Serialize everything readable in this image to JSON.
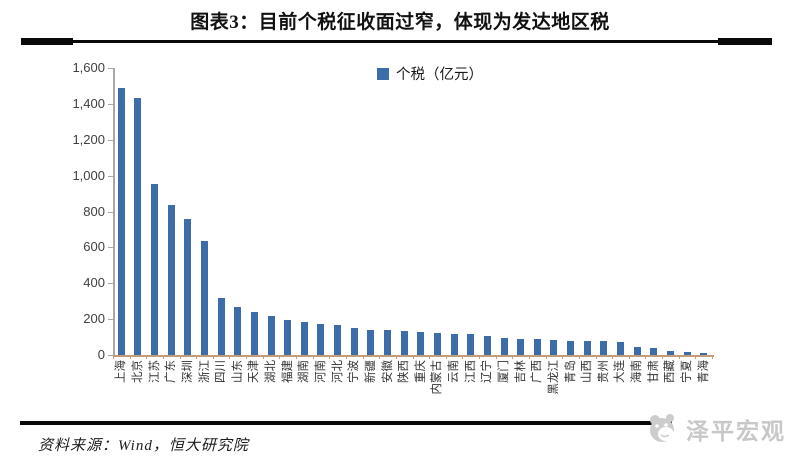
{
  "chart_data": {
    "type": "bar",
    "title": "图表3：目前个税征收面过窄，体现为发达地区税",
    "legend": [
      "个税（亿元）"
    ],
    "legend_position": "top-center",
    "grid": false,
    "bar_color": "#3C6DA9",
    "categories": [
      "上海",
      "北京",
      "江苏",
      "广东",
      "深圳",
      "浙江",
      "四川",
      "山东",
      "天津",
      "湖北",
      "福建",
      "湖南",
      "河南",
      "河北",
      "宁波",
      "新疆",
      "安徽",
      "陕西",
      "重庆",
      "内蒙古",
      "云南",
      "江西",
      "辽宁",
      "厦门",
      "吉林",
      "广西",
      "黑龙江",
      "青岛",
      "山西",
      "贵州",
      "大连",
      "海南",
      "甘肃",
      "西藏",
      "宁夏",
      "青海"
    ],
    "values": [
      1490,
      1430,
      955,
      835,
      760,
      635,
      320,
      265,
      240,
      220,
      196,
      182,
      172,
      168,
      148,
      142,
      138,
      134,
      130,
      120,
      118,
      116,
      104,
      94,
      90,
      88,
      82,
      79,
      77,
      76,
      70,
      46,
      41,
      24,
      14,
      10
    ],
    "xlabel": "",
    "ylabel": "",
    "ylim": [
      0,
      1600
    ],
    "ytick_step": 200,
    "ytick_labels": [
      "0",
      "200",
      "400",
      "600",
      "800",
      "1,000",
      "1,200",
      "1,400",
      "1,600"
    ]
  },
  "source": "资料来源：Wind，恒大研究院",
  "watermark": {
    "label": "泽平宏观"
  }
}
